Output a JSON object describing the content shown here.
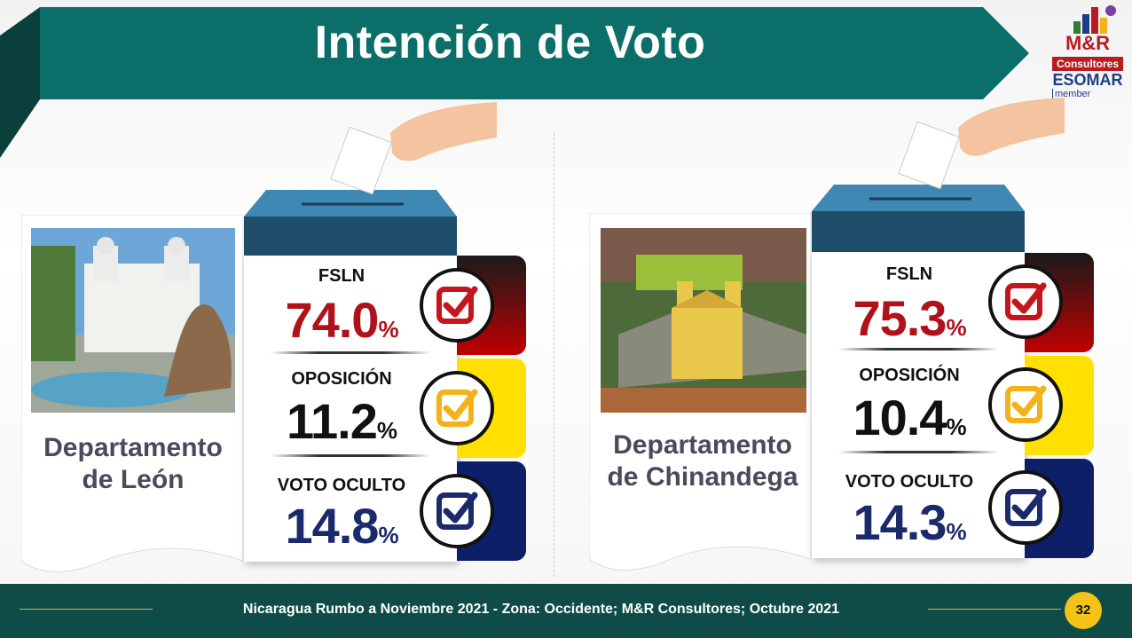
{
  "header": {
    "title": "Intención de Voto",
    "banner_color": "#0b6e68"
  },
  "logo": {
    "brand": "M&R",
    "brand_sub": "Consultores",
    "esomar": "ESOMAR",
    "member": "member"
  },
  "departments": [
    {
      "name_line1": "Departamento",
      "name_line2": "de León",
      "photo_icon": "leon-cathedral-photo",
      "results": [
        {
          "label": "FSLN",
          "value": "74.0",
          "pct": "%",
          "color": "#b0121b",
          "tab_color": "#c00000",
          "check_color": "#c4161c"
        },
        {
          "label": "OPOSICIÓN",
          "value": "11.2",
          "pct": "%",
          "color": "#111111",
          "tab_color": "#ffe000",
          "check_color": "#f3b21a"
        },
        {
          "label": "VOTO OCULTO",
          "value": "14.8",
          "pct": "%",
          "color": "#1b2a6b",
          "tab_color": "#0d1f66",
          "check_color": "#1b2a6b"
        }
      ]
    },
    {
      "name_line1": "Departamento",
      "name_line2": "de Chinandega",
      "photo_icon": "chinandega-church-photo",
      "results": [
        {
          "label": "FSLN",
          "value": "75.3",
          "pct": "%",
          "color": "#b0121b",
          "tab_color": "#c00000",
          "check_color": "#c4161c"
        },
        {
          "label": "OPOSICIÓN",
          "value": "10.4",
          "pct": "%",
          "color": "#111111",
          "tab_color": "#ffe000",
          "check_color": "#f3b21a"
        },
        {
          "label": "VOTO OCULTO",
          "value": "14.3",
          "pct": "%",
          "color": "#1b2a6b",
          "tab_color": "#0d1f66",
          "check_color": "#1b2a6b"
        }
      ]
    }
  ],
  "footer": {
    "caption": "Nicaragua Rumbo a Noviembre 2021 - Zona: Occidente; M&R Consultores; Octubre 2021",
    "page_number": "32"
  }
}
